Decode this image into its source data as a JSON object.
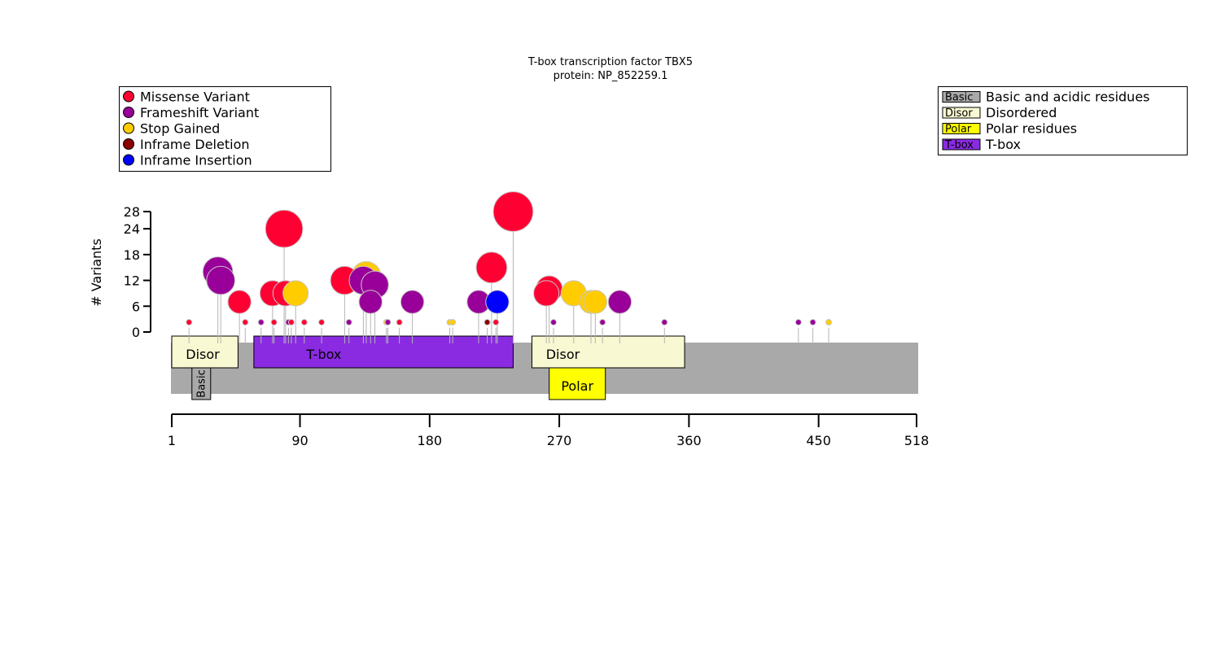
{
  "chart_data": {
    "type": "lollipop",
    "title": "T-box transcription factor TBX5",
    "subtitle": "protein: NP_852259.1",
    "ylabel": "# Variants",
    "ylim": [
      0,
      28
    ],
    "yticks": [
      0,
      6,
      12,
      18,
      24,
      28
    ],
    "xlim": [
      1,
      518
    ],
    "xticks": [
      1,
      90,
      180,
      270,
      360,
      450,
      518
    ],
    "variant_types": [
      {
        "name": "Missense Variant",
        "color": "#ff0033"
      },
      {
        "name": "Frameshift Variant",
        "color": "#990099"
      },
      {
        "name": "Stop Gained",
        "color": "#ffcc00"
      },
      {
        "name": "Inframe Deletion",
        "color": "#8b0000"
      },
      {
        "name": "Inframe Insertion",
        "color": "#0000ff"
      }
    ],
    "domain_types": [
      {
        "key": "Basic",
        "name": "Basic and acidic residues",
        "color": "#a9a9a9"
      },
      {
        "key": "Disor",
        "name": "Disordered",
        "color": "#f8f8d2"
      },
      {
        "key": "Polar",
        "name": "Polar residues",
        "color": "#ffff00"
      },
      {
        "key": "T-box",
        "name": "T-box",
        "color": "#8a2be2"
      }
    ],
    "domains": [
      {
        "key": "Disor",
        "label": "Disor",
        "start": 1,
        "end": 47,
        "row": 0,
        "color": "#f8f8d2"
      },
      {
        "key": "T-box",
        "label": "T-box",
        "start": 58,
        "end": 238,
        "row": 0,
        "color": "#8a2be2"
      },
      {
        "key": "Disor",
        "label": "Disor",
        "start": 251,
        "end": 357,
        "row": 0,
        "color": "#f8f8d2"
      },
      {
        "key": "Polar",
        "label": "Polar",
        "start": 263,
        "end": 302,
        "row": 1,
        "color": "#ffff00"
      },
      {
        "key": "Basic",
        "label": "Basic",
        "start": 15,
        "end": 28,
        "row": 1,
        "color": "#a9a9a9"
      }
    ],
    "variants": [
      {
        "pos": 13,
        "count": 1,
        "type": "Missense Variant"
      },
      {
        "pos": 33,
        "count": 14,
        "type": "Frameshift Variant"
      },
      {
        "pos": 35,
        "count": 12,
        "type": "Frameshift Variant"
      },
      {
        "pos": 48,
        "count": 7,
        "type": "Missense Variant"
      },
      {
        "pos": 52,
        "count": 1,
        "type": "Missense Variant"
      },
      {
        "pos": 63,
        "count": 1,
        "type": "Frameshift Variant"
      },
      {
        "pos": 71,
        "count": 9,
        "type": "Missense Variant"
      },
      {
        "pos": 72,
        "count": 1,
        "type": "Missense Variant"
      },
      {
        "pos": 79,
        "count": 24,
        "type": "Missense Variant"
      },
      {
        "pos": 80,
        "count": 9,
        "type": "Missense Variant"
      },
      {
        "pos": 82,
        "count": 1,
        "type": "Frameshift Variant"
      },
      {
        "pos": 84,
        "count": 1,
        "type": "Missense Variant"
      },
      {
        "pos": 87,
        "count": 9,
        "type": "Stop Gained"
      },
      {
        "pos": 93,
        "count": 1,
        "type": "Missense Variant"
      },
      {
        "pos": 105,
        "count": 1,
        "type": "Missense Variant"
      },
      {
        "pos": 121,
        "count": 12,
        "type": "Missense Variant"
      },
      {
        "pos": 124,
        "count": 1,
        "type": "Frameshift Variant"
      },
      {
        "pos": 134,
        "count": 12,
        "type": "Frameshift Variant"
      },
      {
        "pos": 136,
        "count": 13,
        "type": "Stop Gained"
      },
      {
        "pos": 139,
        "count": 7,
        "type": "Frameshift Variant"
      },
      {
        "pos": 142,
        "count": 11,
        "type": "Frameshift Variant"
      },
      {
        "pos": 150,
        "count": 1,
        "type": "Stop Gained"
      },
      {
        "pos": 151,
        "count": 1,
        "type": "Frameshift Variant"
      },
      {
        "pos": 159,
        "count": 1,
        "type": "Missense Variant"
      },
      {
        "pos": 168,
        "count": 7,
        "type": "Frameshift Variant"
      },
      {
        "pos": 194,
        "count": 1,
        "type": "Stop Gained"
      },
      {
        "pos": 196,
        "count": 1,
        "type": "Stop Gained"
      },
      {
        "pos": 214,
        "count": 7,
        "type": "Frameshift Variant"
      },
      {
        "pos": 220,
        "count": 1,
        "type": "Inframe Deletion"
      },
      {
        "pos": 223,
        "count": 15,
        "type": "Missense Variant"
      },
      {
        "pos": 226,
        "count": 1,
        "type": "Missense Variant"
      },
      {
        "pos": 227,
        "count": 7,
        "type": "Inframe Insertion"
      },
      {
        "pos": 238,
        "count": 28,
        "type": "Missense Variant"
      },
      {
        "pos": 261,
        "count": 9,
        "type": "Missense Variant"
      },
      {
        "pos": 263,
        "count": 10,
        "type": "Missense Variant"
      },
      {
        "pos": 266,
        "count": 1,
        "type": "Frameshift Variant"
      },
      {
        "pos": 280,
        "count": 9,
        "type": "Stop Gained"
      },
      {
        "pos": 292,
        "count": 7,
        "type": "Stop Gained"
      },
      {
        "pos": 295,
        "count": 7,
        "type": "Stop Gained"
      },
      {
        "pos": 300,
        "count": 1,
        "type": "Frameshift Variant"
      },
      {
        "pos": 312,
        "count": 7,
        "type": "Frameshift Variant"
      },
      {
        "pos": 343,
        "count": 1,
        "type": "Frameshift Variant"
      },
      {
        "pos": 436,
        "count": 1,
        "type": "Frameshift Variant"
      },
      {
        "pos": 446,
        "count": 1,
        "type": "Frameshift Variant"
      },
      {
        "pos": 457,
        "count": 1,
        "type": "Stop Gained"
      }
    ]
  }
}
